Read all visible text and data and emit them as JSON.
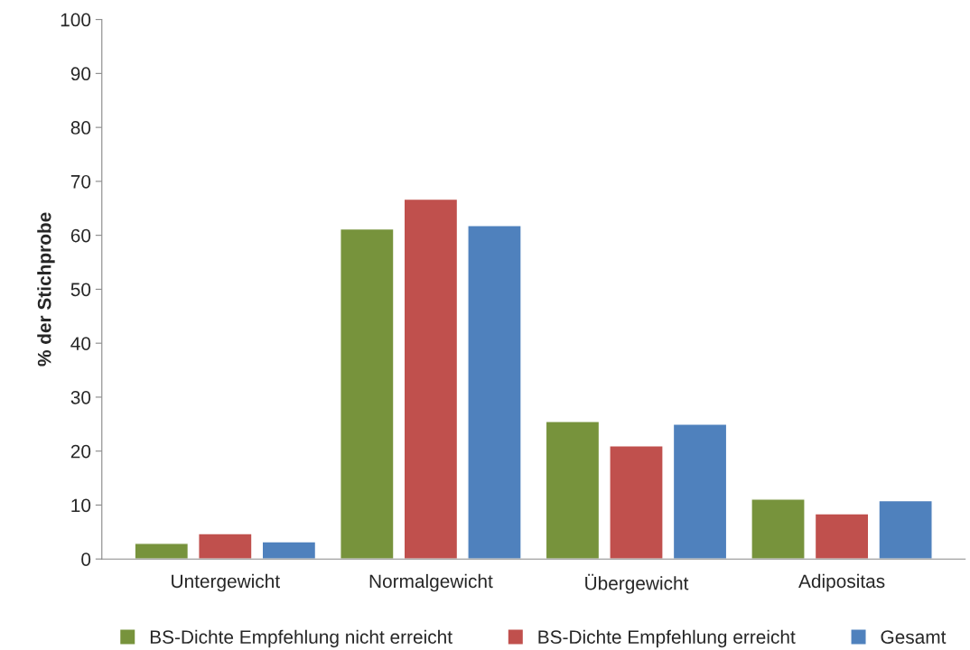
{
  "chart_data": {
    "type": "bar",
    "ylabel": "% der Stichprobe",
    "categories": [
      "Untergewicht",
      "Normalgewicht",
      "Übergewicht",
      "Adipositas"
    ],
    "series": [
      {
        "name": "BS-Dichte Empfehlung nicht erreicht",
        "color": "#77933c",
        "values": [
          2.9,
          61.2,
          25.5,
          11.1
        ]
      },
      {
        "name": "BS-Dichte Empfehlung erreicht",
        "color": "#c0504d",
        "values": [
          4.7,
          66.7,
          21.0,
          8.4
        ]
      },
      {
        "name": "Gesamt",
        "color": "#4f81bd",
        "values": [
          3.2,
          61.8,
          25.0,
          10.8
        ]
      }
    ],
    "ylim": [
      0,
      100
    ],
    "yticks": [
      0,
      10,
      20,
      30,
      40,
      50,
      60,
      70,
      80,
      90,
      100
    ],
    "grid": false,
    "legend": "bottom"
  }
}
